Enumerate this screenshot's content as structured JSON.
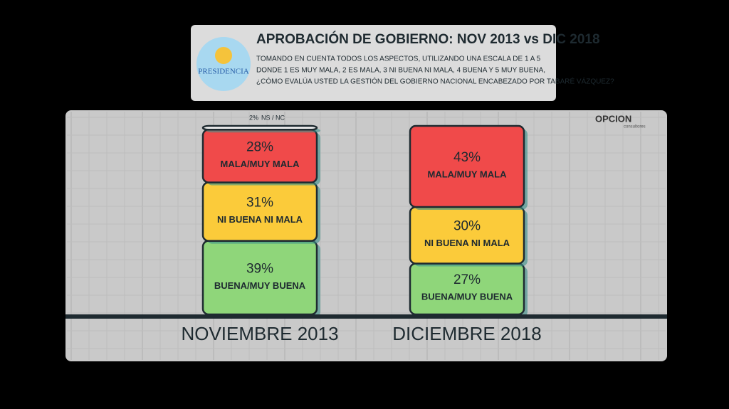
{
  "header": {
    "logo_text": "PRESIDENCIA",
    "title": "APROBACIÓN DE GOBIERNO: NOV 2013 vs DIC 2018",
    "question": [
      "TOMANDO EN CUENTA TODOS LOS ASPECTOS, UTILIZANDO UNA ESCALA DE 1 A 5",
      "DONDE 1 ES MUY MALA, 2 ES MALA, 3 NI BUENA NI MALA, 4 BUENA Y 5 MUY BUENA,",
      "¿CÓMO EVALÚA USTED LA GESTIÓN DEL GOBIERNO NACIONAL ENCABEZADO POR TABARÉ VÁZQUEZ?"
    ]
  },
  "brand": {
    "name": "OPCION",
    "tagline": "consultores"
  },
  "chart_data": {
    "type": "stacked_bar",
    "categories": [
      "NOVIEMBRE 2013",
      "DICIEMBRE 2018"
    ],
    "series": [
      {
        "name": "BUENA/MUY BUENA",
        "color": "#8fd67a",
        "values": [
          39,
          27
        ],
        "value_labels": [
          "39%",
          "27%"
        ]
      },
      {
        "name": "NI BUENA NI MALA",
        "color": "#fbcb3a",
        "values": [
          31,
          30
        ],
        "value_labels": [
          "31%",
          "30%"
        ]
      },
      {
        "name": "MALA/MUY MALA",
        "color": "#f04a4a",
        "values": [
          28,
          43
        ],
        "value_labels": [
          "28%",
          "43%"
        ]
      },
      {
        "name": "NS / NC",
        "color": "#f2f2f2",
        "values": [
          2,
          null
        ],
        "value_labels": [
          "2%",
          null
        ]
      }
    ]
  }
}
